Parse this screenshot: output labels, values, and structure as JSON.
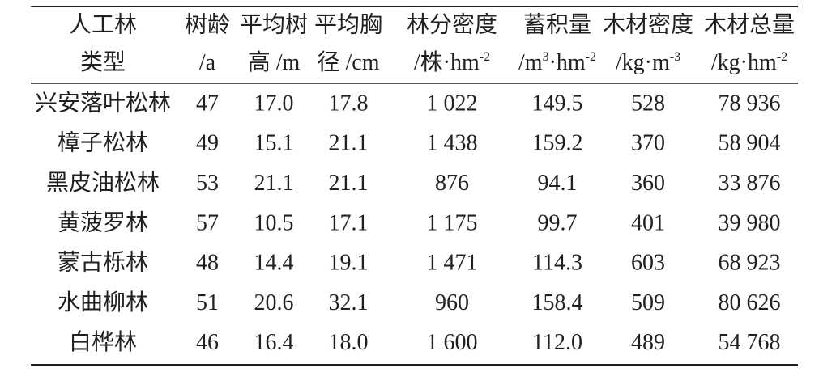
{
  "table": {
    "columns": [
      {
        "line1": "人工林",
        "line2": [
          {
            "text": "类型"
          }
        ]
      },
      {
        "line1": "树龄",
        "line2": [
          {
            "text": "/a"
          }
        ]
      },
      {
        "line1": "平均树",
        "line2": [
          {
            "text": "高 /m"
          }
        ]
      },
      {
        "line1": "平均胸",
        "line2": [
          {
            "text": "径 /cm"
          }
        ]
      },
      {
        "line1": "林分密度",
        "line2": [
          {
            "text": "/株·hm"
          },
          {
            "sup": "-2"
          }
        ]
      },
      {
        "line1": "蓄积量",
        "line2": [
          {
            "text": "/m"
          },
          {
            "sup": "3"
          },
          {
            "text": "·hm"
          },
          {
            "sup": "-2"
          }
        ]
      },
      {
        "line1": "木材密度",
        "line2": [
          {
            "text": "/kg·m"
          },
          {
            "sup": "-3"
          }
        ]
      },
      {
        "line1": "木材总量",
        "line2": [
          {
            "text": "/kg·hm"
          },
          {
            "sup": "-2"
          }
        ]
      }
    ],
    "rows": [
      [
        "兴安落叶松林",
        "47",
        "17.0",
        "17.8",
        "1 022",
        "149.5",
        "528",
        "78 936"
      ],
      [
        "樟子松林",
        "49",
        "15.1",
        "21.1",
        "1 438",
        "159.2",
        "370",
        "58 904"
      ],
      [
        "黑皮油松林",
        "53",
        "21.1",
        "21.1",
        "876",
        "94.1",
        "360",
        "33 876"
      ],
      [
        "黄菠罗林",
        "57",
        "10.5",
        "17.1",
        "1 175",
        "99.7",
        "401",
        "39 980"
      ],
      [
        "蒙古栎林",
        "48",
        "14.4",
        "19.1",
        "1 471",
        "114.3",
        "603",
        "68 923"
      ],
      [
        "水曲柳林",
        "51",
        "20.6",
        "32.1",
        "960",
        "158.4",
        "509",
        "80 626"
      ],
      [
        "白桦林",
        "46",
        "16.4",
        "18.0",
        "1 600",
        "112.0",
        "489",
        "54 768"
      ]
    ]
  }
}
